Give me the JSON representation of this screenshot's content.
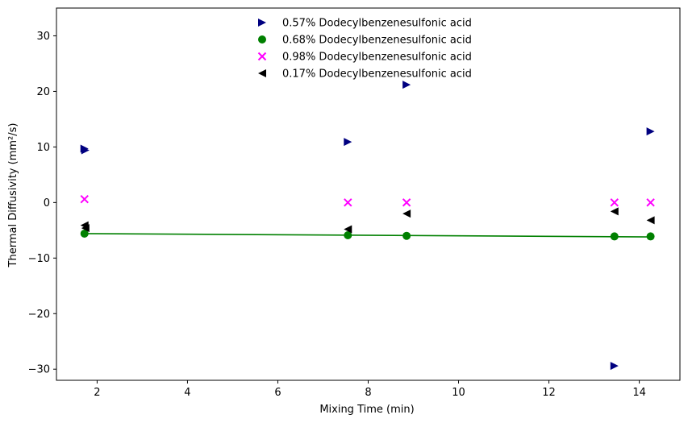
{
  "chart_data": {
    "type": "scatter",
    "xlabel": "Mixing Time (min)",
    "ylabel": "Thermal Diffusivity (mm²/s)",
    "xlim": [
      1.1,
      14.9
    ],
    "ylim": [
      -32,
      35
    ],
    "x_ticks": [
      2,
      4,
      6,
      8,
      10,
      12,
      14
    ],
    "y_ticks": [
      -30,
      -20,
      -10,
      0,
      10,
      20,
      30
    ],
    "grid": false,
    "legend_position": "top-center",
    "series": [
      {
        "name": "0.57% Dodecylbenzenesulfonic acid",
        "marker": "triangle-right",
        "color": "#000080",
        "points": [
          [
            1.72,
            9.7
          ],
          [
            1.74,
            9.4
          ],
          [
            7.55,
            10.9
          ],
          [
            8.85,
            21.2
          ],
          [
            13.45,
            -29.4
          ],
          [
            14.25,
            12.8
          ]
        ]
      },
      {
        "name": "0.68% Dodecylbenzenesulfonic acid",
        "marker": "circle",
        "color": "#008000",
        "points": [
          [
            1.72,
            -5.6
          ],
          [
            7.55,
            -5.9
          ],
          [
            8.85,
            -6.0
          ],
          [
            13.45,
            -6.1
          ],
          [
            14.25,
            -6.1
          ]
        ]
      },
      {
        "name": "0.98% Dodecylbenzenesulfonic acid",
        "marker": "x",
        "color": "#ff00ff",
        "points": [
          [
            1.72,
            0.6
          ],
          [
            7.55,
            0.0
          ],
          [
            8.85,
            0.0
          ],
          [
            13.45,
            0.0
          ],
          [
            14.25,
            0.0
          ]
        ]
      },
      {
        "name": "0.17% Dodecylbenzenesulfonic acid",
        "marker": "triangle-left",
        "color": "#000000",
        "points": [
          [
            1.72,
            -4.1
          ],
          [
            1.74,
            -4.6
          ],
          [
            7.55,
            -4.8
          ],
          [
            8.85,
            -2.0
          ],
          [
            13.45,
            -1.6
          ],
          [
            14.25,
            -3.2
          ]
        ]
      }
    ],
    "trend_line": {
      "color": "#008000",
      "points": [
        [
          1.72,
          -5.6
        ],
        [
          14.25,
          -6.2
        ]
      ]
    }
  }
}
